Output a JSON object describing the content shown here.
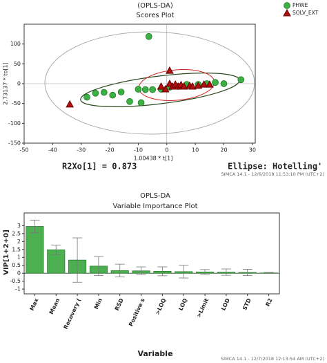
{
  "chart_data": [
    {
      "type": "scatter",
      "title": "(OPLS-DA)",
      "subtitle": "Scores Plot",
      "x_label": "1.00438 * t[1]",
      "y_label": "2.73137 * to[1]",
      "xlim": [
        -50,
        31
      ],
      "xticks": [
        -50,
        -40,
        -30,
        -20,
        -10,
        0,
        10,
        20,
        30
      ],
      "ylim": [
        -150,
        150
      ],
      "yticks": [
        -150,
        -100,
        -50,
        0,
        50,
        100
      ],
      "legend": "top-right",
      "series": [
        {
          "name": "PHWE",
          "color": "#3cb043",
          "marker": "circle",
          "x": [
            -6.3,
            -28,
            -25,
            -22,
            -19,
            -16,
            -13,
            -10,
            -7.5,
            -5,
            -2,
            1,
            4,
            7,
            11,
            14,
            17,
            20,
            26,
            -9
          ],
          "values": [
            119,
            -34,
            -24,
            -22,
            -29,
            -21,
            -45,
            -14,
            -15,
            -15,
            -14,
            -9,
            -7,
            -2,
            -2,
            0,
            3,
            0,
            10,
            -48
          ]
        },
        {
          "name": "SOLV_EXT",
          "color": "#b01010",
          "marker": "triangle",
          "x": [
            -34,
            1,
            -0.5,
            1,
            2,
            3,
            4,
            5,
            6,
            8,
            9,
            11,
            13,
            15,
            -2
          ],
          "values": [
            -52,
            33,
            -14,
            0,
            -7,
            -2,
            -7,
            -3,
            -7,
            -5,
            -7,
            -5,
            -2,
            -2,
            -7
          ]
        }
      ],
      "annotations": [
        "R2Xo[1] = 0.873",
        "Ellipse: Hotelling'"
      ],
      "footer": "SIMCA 14.1 - 12/6/2018 11:53:10 PM (UTC+2)"
    },
    {
      "type": "bar",
      "title": "OPLS-DA",
      "subtitle": "Variable Importance Plot",
      "x_label": "Variable",
      "y_label": "VIP[1+2+0]",
      "categories": [
        "Max",
        "Mean",
        "Recovery (",
        "Min",
        "RSD",
        "Positive s",
        ">LOQ",
        "LOQ",
        ">Limit",
        "LOD",
        "STD",
        "R2"
      ],
      "values": [
        2.95,
        1.48,
        0.83,
        0.45,
        0.17,
        0.15,
        0.12,
        0.1,
        0.08,
        0.07,
        0.05,
        0.02
      ],
      "errors": [
        0.4,
        0.3,
        1.4,
        0.6,
        0.4,
        0.25,
        0.28,
        0.4,
        0.15,
        0.2,
        0.2,
        0.03
      ],
      "color": "#4cb050",
      "ylim": [
        -1.3,
        3.8
      ],
      "yticks": [
        -1,
        -0.5,
        0,
        0.5,
        1,
        1.5,
        2,
        2.5,
        3
      ],
      "footer": "SIMCA 14.1 - 12/7/2018 12:13:54 AM (UTC+2)"
    }
  ]
}
